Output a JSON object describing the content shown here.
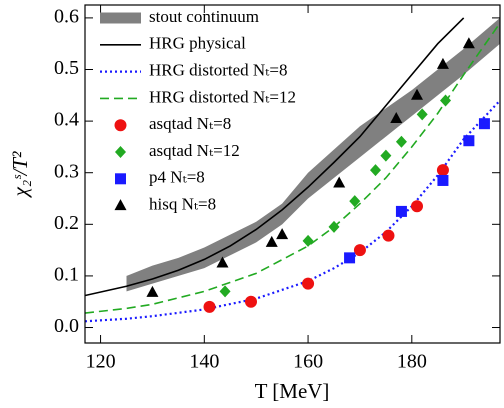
{
  "chart_data": {
    "type": "line",
    "xlabel": "T [MeV]",
    "ylabel": "χ₂ˢ/T²",
    "xlim": [
      117,
      197
    ],
    "ylim": [
      -0.03,
      0.625
    ],
    "xticks": [
      120,
      140,
      160,
      180
    ],
    "yticks": [
      {
        "value": 0,
        "label": "0.0"
      },
      0.1,
      0.2,
      0.3,
      0.4,
      0.5,
      0.6
    ],
    "legend": "upper left",
    "series": [
      {
        "name": "stout continuum",
        "style": "band",
        "color": "#808080",
        "x": [
          125,
          130,
          135,
          140,
          145,
          150,
          155,
          160,
          165,
          170,
          175,
          180,
          185,
          190,
          197
        ],
        "low": [
          0.07,
          0.085,
          0.1,
          0.115,
          0.14,
          0.165,
          0.2,
          0.25,
          0.29,
          0.33,
          0.37,
          0.41,
          0.45,
          0.49,
          0.55
        ],
        "high": [
          0.1,
          0.12,
          0.135,
          0.155,
          0.18,
          0.205,
          0.24,
          0.3,
          0.345,
          0.39,
          0.425,
          0.46,
          0.5,
          0.54,
          0.6
        ]
      },
      {
        "name": "HRG physical",
        "style": "solid",
        "color": "#000000",
        "x": [
          117,
          125,
          130,
          135,
          140,
          145,
          150,
          155,
          160,
          165,
          170,
          175,
          180,
          185,
          190
        ],
        "values": [
          0.062,
          0.08,
          0.094,
          0.111,
          0.132,
          0.158,
          0.19,
          0.228,
          0.272,
          0.32,
          0.37,
          0.43,
          0.49,
          0.55,
          0.6
        ]
      },
      {
        "name": "HRG distorted Nₜ=8",
        "style": "dotted",
        "color": "#1a1aff",
        "x": [
          117,
          125,
          130,
          140,
          150,
          160,
          165,
          170,
          175,
          180,
          185,
          190,
          197
        ],
        "values": [
          0.012,
          0.017,
          0.022,
          0.035,
          0.056,
          0.09,
          0.115,
          0.145,
          0.185,
          0.235,
          0.295,
          0.365,
          0.44
        ]
      },
      {
        "name": "HRG distorted Nₜ=12",
        "style": "dashed",
        "color": "#22aa22",
        "x": [
          117,
          125,
          130,
          140,
          150,
          160,
          165,
          170,
          175,
          180,
          185,
          190,
          197
        ],
        "values": [
          0.028,
          0.037,
          0.045,
          0.07,
          0.105,
          0.158,
          0.195,
          0.24,
          0.29,
          0.35,
          0.415,
          0.49,
          0.59
        ]
      },
      {
        "name": "asqtad Nₜ=8",
        "style": "circle",
        "color": "#ee1111",
        "x": [
          141,
          149,
          160,
          170,
          175.5,
          181,
          186
        ],
        "values": [
          0.04,
          0.05,
          0.085,
          0.15,
          0.178,
          0.235,
          0.305
        ]
      },
      {
        "name": "asqtad Nₜ=12",
        "style": "diamond",
        "color": "#22aa22",
        "x": [
          144,
          160,
          165,
          169,
          173,
          175,
          178,
          182,
          186.5
        ],
        "values": [
          0.07,
          0.168,
          0.195,
          0.245,
          0.305,
          0.333,
          0.36,
          0.413,
          0.44
        ]
      },
      {
        "name": "p4 Nₜ=8",
        "style": "square",
        "color": "#1a1aff",
        "x": [
          168,
          178,
          186,
          191,
          194
        ],
        "values": [
          0.135,
          0.225,
          0.285,
          0.362,
          0.395
        ]
      },
      {
        "name": "hisq Nₜ=8",
        "style": "triangle",
        "color": "#000000",
        "x": [
          130,
          143.5,
          153,
          155,
          166,
          177,
          181,
          186,
          191
        ],
        "values": [
          0.068,
          0.125,
          0.165,
          0.18,
          0.28,
          0.405,
          0.45,
          0.51,
          0.55
        ]
      }
    ]
  }
}
